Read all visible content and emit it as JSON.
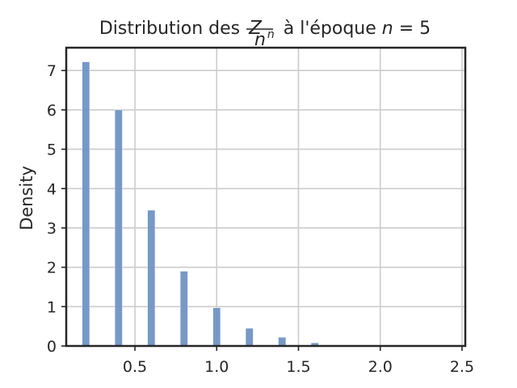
{
  "chart_data": {
    "type": "bar",
    "title": {
      "prefix": "Distribution des ",
      "frac_numerator": "Z",
      "frac_numerator_sub": "n",
      "frac_denominator": "n",
      "suffix_text": " à l'époque ",
      "suffix_var": "n",
      "suffix_eq": " = 5"
    },
    "xlabel": "",
    "ylabel": "Density",
    "xlim": [
      0.08,
      2.52
    ],
    "ylim": [
      0,
      7.58
    ],
    "xticks": [
      0.5,
      1.0,
      1.5,
      2.0,
      2.5
    ],
    "xtick_labels": [
      "0.5",
      "1.0",
      "1.5",
      "2.0",
      "2.5"
    ],
    "yticks": [
      0,
      1,
      2,
      3,
      4,
      5,
      6,
      7
    ],
    "ytick_labels": [
      "0",
      "1",
      "2",
      "3",
      "4",
      "5",
      "6",
      "7"
    ],
    "grid": true,
    "bar_width": 0.046,
    "color": "#7093c4",
    "x": [
      0.2,
      0.4,
      0.6,
      0.8,
      1.0,
      1.2,
      1.4,
      1.6
    ],
    "values": [
      7.22,
      6.0,
      3.45,
      1.9,
      0.97,
      0.45,
      0.22,
      0.08
    ]
  }
}
